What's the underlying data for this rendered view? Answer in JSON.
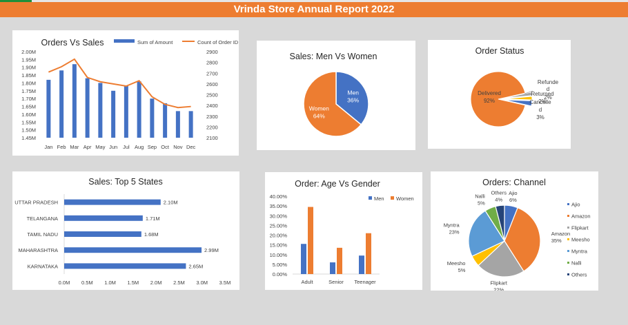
{
  "report_title": "Vrinda Store Annual Report 2022",
  "colors": {
    "blue": "#4472c4",
    "orange": "#ed7d31",
    "gray": "#a5a5a5",
    "gold": "#ffc000",
    "lightblue": "#5b9bd5",
    "green": "#70ad47",
    "navy": "#264478",
    "banner": "#ed7d31"
  },
  "chart_data": [
    {
      "id": "orders_vs_sales",
      "type": "bar",
      "title": "Orders Vs Sales",
      "categories": [
        "Jan",
        "Feb",
        "Mar",
        "Apr",
        "May",
        "Jun",
        "Jul",
        "Aug",
        "Sep",
        "Oct",
        "Nov",
        "Dec"
      ],
      "series": [
        {
          "name": "Sum of Amount",
          "type": "bar",
          "axis": "left",
          "values": [
            1.82,
            1.88,
            1.92,
            1.83,
            1.8,
            1.75,
            1.78,
            1.81,
            1.7,
            1.67,
            1.62,
            1.62
          ]
        },
        {
          "name": "Count of Order ID",
          "type": "line",
          "axis": "right",
          "values": [
            2710,
            2760,
            2830,
            2660,
            2620,
            2600,
            2580,
            2630,
            2480,
            2410,
            2380,
            2390
          ]
        }
      ],
      "y_left": {
        "min": 1.45,
        "max": 2.0,
        "ticks": [
          "1.45M",
          "1.50M",
          "1.55M",
          "1.60M",
          "1.65M",
          "1.70M",
          "1.75M",
          "1.80M",
          "1.85M",
          "1.90M",
          "1.95M",
          "2.00M"
        ]
      },
      "y_right": {
        "min": 2100,
        "max": 2900,
        "ticks": [
          "2100",
          "2200",
          "2300",
          "2400",
          "2500",
          "2600",
          "2700",
          "2800",
          "2900"
        ]
      },
      "legend": "top"
    },
    {
      "id": "sales_men_women",
      "type": "pie",
      "title": "Sales: Men Vs Women",
      "slices": [
        {
          "name": "Men",
          "value": 36,
          "label": "36%"
        },
        {
          "name": "Women",
          "value": 64,
          "label": "64%"
        }
      ]
    },
    {
      "id": "order_status",
      "type": "pie",
      "title": "Order Status",
      "slices": [
        {
          "name": "Delivered",
          "value": 92,
          "label": "92%",
          "line1": "Delivered"
        },
        {
          "name": "Refunded",
          "value": 2,
          "label": "2%",
          "line1": "Refunde",
          "line2": "d"
        },
        {
          "name": "Returned",
          "value": 2,
          "label": "2%",
          "line1": "Returned"
        },
        {
          "name": "Cancelled",
          "value": 3,
          "label": "3%",
          "line1": "Cancelle",
          "line2": "d"
        }
      ]
    },
    {
      "id": "top5_states",
      "type": "bar",
      "orientation": "horizontal",
      "title": "Sales: Top 5 States",
      "categories": [
        "UTTAR PRADESH",
        "TELANGANA",
        "TAMIL NADU",
        "MAHARASHTRA",
        "KARNATAKA"
      ],
      "values": [
        2.1,
        1.71,
        1.68,
        2.99,
        2.65
      ],
      "labels": [
        "2.10M",
        "1.71M",
        "1.68M",
        "2.99M",
        "2.65M"
      ],
      "xlim": [
        0,
        3.5
      ],
      "ticks": [
        "0.0M",
        "0.5M",
        "1.0M",
        "1.5M",
        "2.0M",
        "2.5M",
        "3.0M",
        "3.5M"
      ]
    },
    {
      "id": "age_vs_gender",
      "type": "bar",
      "title": "Order: Age Vs Gender",
      "categories": [
        "Adult",
        "Senior",
        "Teenager"
      ],
      "series": [
        {
          "name": "Men",
          "values": [
            15.5,
            6.0,
            9.5
          ]
        },
        {
          "name": "Women",
          "values": [
            34.5,
            13.5,
            21.0
          ]
        }
      ],
      "ylim": [
        0,
        40
      ],
      "ticks": [
        "0.00%",
        "5.00%",
        "10.00%",
        "15.00%",
        "20.00%",
        "25.00%",
        "30.00%",
        "35.00%",
        "40.00%"
      ],
      "legend": "top-right"
    },
    {
      "id": "orders_channel",
      "type": "pie",
      "title": "Orders: Channel",
      "slices": [
        {
          "name": "Ajio",
          "value": 6,
          "label": "6%"
        },
        {
          "name": "Amazon",
          "value": 35,
          "label": "35%"
        },
        {
          "name": "Flipkart",
          "value": 22,
          "label": "22%"
        },
        {
          "name": "Meesho",
          "value": 5,
          "label": "5%"
        },
        {
          "name": "Myntra",
          "value": 23,
          "label": "23%"
        },
        {
          "name": "Nalli",
          "value": 5,
          "label": "5%"
        },
        {
          "name": "Others",
          "value": 4,
          "label": "4%"
        }
      ],
      "legend": "right"
    }
  ]
}
